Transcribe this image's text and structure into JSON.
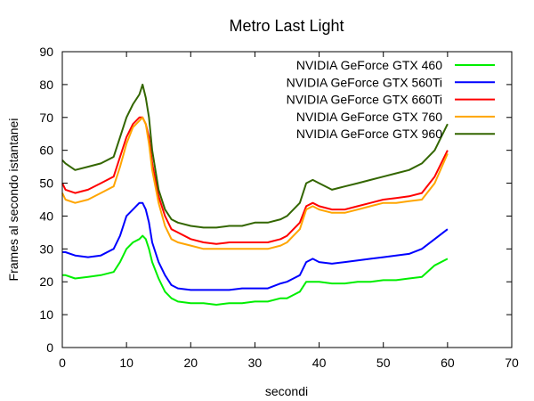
{
  "chart_data": {
    "type": "line",
    "title": "Metro Last Light",
    "xlabel": "secondi",
    "ylabel": "Frames al secondo istantanei",
    "xlim": [
      0,
      70
    ],
    "ylim": [
      0,
      90
    ],
    "xticks": [
      "0",
      "10",
      "20",
      "30",
      "40",
      "50",
      "60",
      "70"
    ],
    "yticks": [
      "0",
      "10",
      "20",
      "30",
      "40",
      "50",
      "60",
      "70",
      "80",
      "90"
    ],
    "grid": false,
    "legend_position": "top-right",
    "series": [
      {
        "name": "NVIDIA GeForce GTX 460",
        "color": "#00ee00",
        "x": [
          0,
          0.5,
          2,
          4,
          6,
          8,
          9,
          10,
          11,
          12,
          12.5,
          13,
          13.5,
          14,
          15,
          16,
          17,
          18,
          20,
          22,
          24,
          26,
          28,
          30,
          32,
          34,
          35,
          36,
          37,
          38,
          39,
          40,
          42,
          44,
          46,
          48,
          50,
          52,
          54,
          56,
          58,
          60
        ],
        "y": [
          22,
          22,
          21,
          21.5,
          22,
          23,
          26,
          30,
          32,
          33,
          34,
          33,
          30,
          26,
          21,
          17,
          15,
          14,
          13.5,
          13.5,
          13,
          13.5,
          13.5,
          14,
          14,
          15,
          15,
          16,
          17,
          20,
          20,
          20,
          19.5,
          19.5,
          20,
          20,
          20.5,
          20.5,
          21,
          21.5,
          25,
          27
        ]
      },
      {
        "name": "NVIDIA GeForce GTX 560Ti",
        "color": "#0000ff",
        "x": [
          0,
          0.5,
          2,
          4,
          6,
          8,
          9,
          10,
          11,
          12,
          12.5,
          13,
          13.5,
          14,
          15,
          16,
          17,
          18,
          20,
          22,
          24,
          26,
          28,
          30,
          32,
          34,
          35,
          36,
          37,
          38,
          39,
          40,
          42,
          44,
          46,
          48,
          50,
          52,
          54,
          56,
          58,
          60
        ],
        "y": [
          29,
          29,
          28,
          27.5,
          28,
          30,
          34,
          40,
          42,
          44,
          44,
          42,
          38,
          32,
          26,
          22,
          19,
          18,
          17.5,
          17.5,
          17.5,
          17.5,
          18,
          18,
          18,
          19.5,
          20,
          21,
          22,
          26,
          27,
          26,
          25.5,
          26,
          26.5,
          27,
          27.5,
          28,
          28.5,
          30,
          33,
          36
        ]
      },
      {
        "name": "NVIDIA GeForce GTX 660Ti",
        "color": "#ff0000",
        "x": [
          0,
          0.5,
          2,
          4,
          6,
          8,
          9,
          10,
          11,
          12,
          12.5,
          13,
          13.5,
          14,
          15,
          16,
          17,
          18,
          20,
          22,
          24,
          26,
          28,
          30,
          32,
          34,
          35,
          36,
          37,
          38,
          39,
          40,
          42,
          44,
          46,
          48,
          50,
          52,
          54,
          56,
          58,
          60
        ],
        "y": [
          50,
          48,
          47,
          48,
          50,
          52,
          58,
          64,
          68,
          70,
          70,
          68,
          64,
          56,
          46,
          40,
          36,
          35,
          33,
          32,
          31.5,
          32,
          32,
          32,
          32,
          33,
          34,
          36,
          38,
          43,
          44,
          43,
          42,
          42,
          43,
          44,
          45,
          45.5,
          46,
          47,
          52,
          60
        ]
      },
      {
        "name": "NVIDIA GeForce GTX 760",
        "color": "#ffa500",
        "x": [
          0,
          0.5,
          2,
          4,
          6,
          8,
          9,
          10,
          11,
          12,
          12.5,
          13,
          13.5,
          14,
          15,
          16,
          17,
          18,
          20,
          22,
          24,
          26,
          28,
          30,
          32,
          34,
          35,
          36,
          37,
          38,
          39,
          40,
          42,
          44,
          46,
          48,
          50,
          52,
          54,
          56,
          58,
          60
        ],
        "y": [
          47,
          45,
          44,
          45,
          47,
          49,
          55,
          62,
          67,
          69,
          70,
          68,
          62,
          54,
          44,
          37,
          33,
          32,
          31,
          30,
          30,
          30,
          30,
          30,
          30,
          31,
          32,
          34,
          36,
          42,
          43,
          42,
          41,
          41,
          42,
          43,
          44,
          44,
          44.5,
          45,
          50,
          59
        ]
      },
      {
        "name": "NVIDIA GeForce GTX 960",
        "color": "#336600",
        "x": [
          0,
          0.5,
          2,
          4,
          6,
          8,
          9,
          10,
          11,
          12,
          12.5,
          13,
          13.5,
          14,
          15,
          16,
          17,
          18,
          20,
          22,
          24,
          26,
          28,
          30,
          32,
          34,
          35,
          36,
          37,
          38,
          39,
          40,
          42,
          44,
          46,
          48,
          50,
          52,
          54,
          56,
          58,
          60
        ],
        "y": [
          57,
          56,
          54,
          55,
          56,
          58,
          64,
          70,
          74,
          77,
          80,
          76,
          70,
          60,
          48,
          42,
          39,
          38,
          37,
          36.5,
          36.5,
          37,
          37,
          38,
          38,
          39,
          40,
          42,
          44,
          50,
          51,
          50,
          48,
          49,
          50,
          51,
          52,
          53,
          54,
          56,
          60,
          68
        ]
      }
    ]
  }
}
